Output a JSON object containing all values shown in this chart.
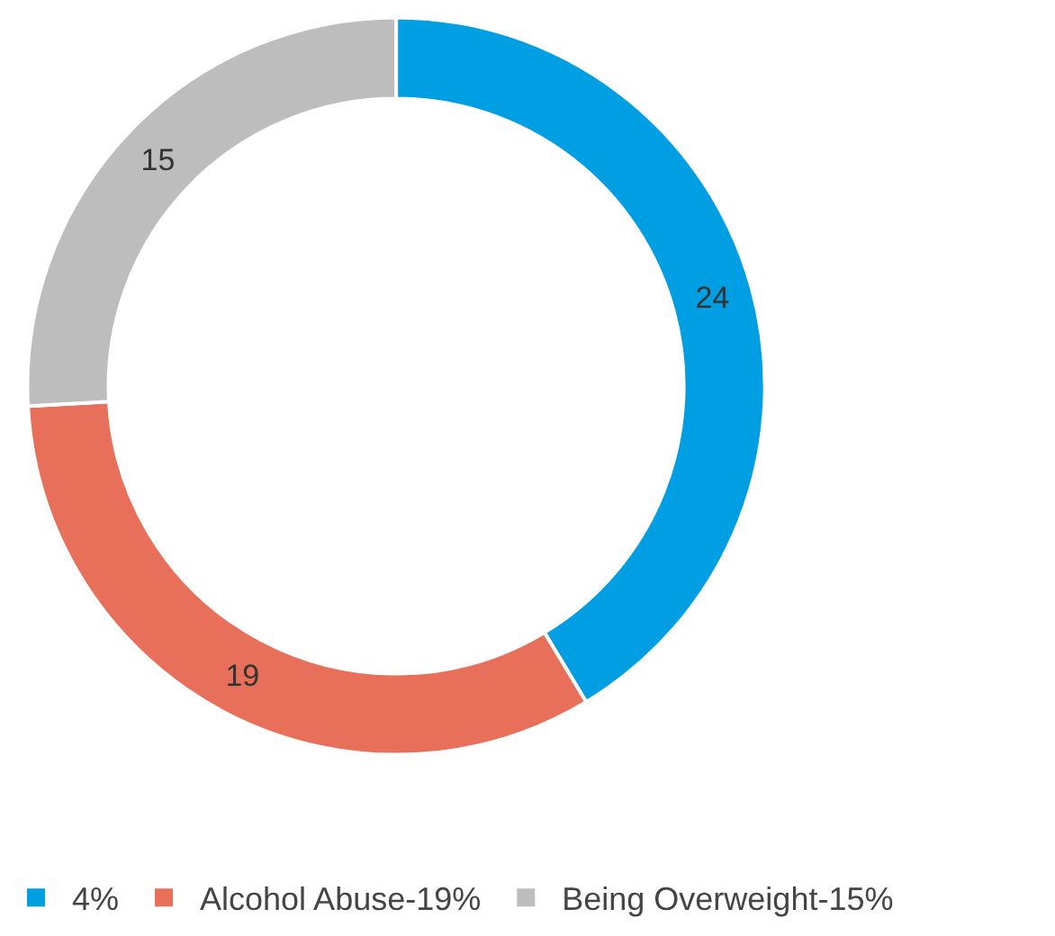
{
  "chart_data": {
    "type": "donut",
    "categories": [
      "4%",
      "Alcohol Abuse-19%",
      "Being Overweight-15%"
    ],
    "values": [
      24,
      19,
      15
    ],
    "colors": [
      "#009fe3",
      "#e8705a",
      "#bdbdbd"
    ],
    "data_labels": true,
    "legend": "bottom"
  }
}
